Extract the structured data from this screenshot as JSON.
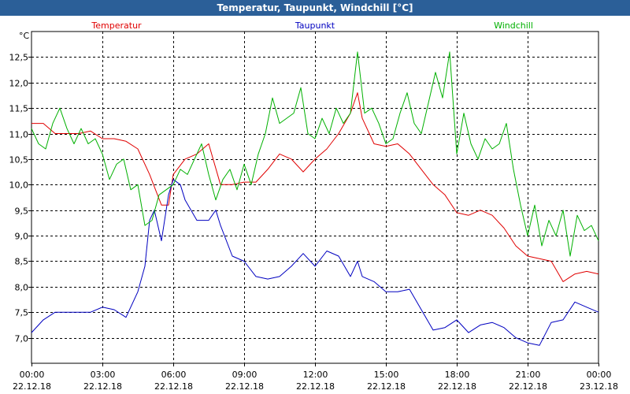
{
  "window": {
    "title": "Temperatur, Taupunkt, Windchill [°C]"
  },
  "colors": {
    "title_bar": "#2b5f98",
    "grid": "#000000",
    "temperatur": "#e00000",
    "taupunkt": "#0000c0",
    "windchill": "#00b000"
  },
  "chart_data": {
    "type": "line",
    "title": "Temperatur, Taupunkt, Windchill [°C]",
    "ylabel": "°C",
    "xlabel": "",
    "ylim": [
      6.5,
      13.0
    ],
    "xlim": [
      0,
      24
    ],
    "y_ticks": [
      {
        "value": 7.0,
        "label": "7,0"
      },
      {
        "value": 7.5,
        "label": "7,5"
      },
      {
        "value": 8.0,
        "label": "8,0"
      },
      {
        "value": 8.5,
        "label": "8,5"
      },
      {
        "value": 9.0,
        "label": "9,0"
      },
      {
        "value": 9.5,
        "label": "9,5"
      },
      {
        "value": 10.0,
        "label": "10,0"
      },
      {
        "value": 10.5,
        "label": "10,5"
      },
      {
        "value": 11.0,
        "label": "11,0"
      },
      {
        "value": 11.5,
        "label": "11,5"
      },
      {
        "value": 12.0,
        "label": "12,0"
      },
      {
        "value": 12.5,
        "label": "12,5"
      }
    ],
    "x_ticks": [
      {
        "value": 0,
        "time": "00:00",
        "date": "22.12.18"
      },
      {
        "value": 3,
        "time": "03:00",
        "date": "22.12.18"
      },
      {
        "value": 6,
        "time": "06:00",
        "date": "22.12.18"
      },
      {
        "value": 9,
        "time": "09:00",
        "date": "22.12.18"
      },
      {
        "value": 12,
        "time": "12:00",
        "date": "22.12.18"
      },
      {
        "value": 15,
        "time": "15:00",
        "date": "22.12.18"
      },
      {
        "value": 18,
        "time": "18:00",
        "date": "22.12.18"
      },
      {
        "value": 21,
        "time": "21:00",
        "date": "22.12.18"
      },
      {
        "value": 24,
        "time": "00:00",
        "date": "23.12.18"
      }
    ],
    "grid": true,
    "legend_placement": "top",
    "series": [
      {
        "name": "Temperatur",
        "color": "#e00000",
        "x": [
          0,
          0.5,
          1,
          1.5,
          2,
          2.5,
          3,
          3.5,
          4,
          4.5,
          5,
          5.5,
          5.8,
          6,
          6.5,
          7,
          7.5,
          8,
          8.5,
          9,
          9.5,
          10,
          10.5,
          11,
          11.5,
          12,
          12.5,
          13,
          13.5,
          13.8,
          14,
          14.5,
          15,
          15.5,
          16,
          16.5,
          17,
          17.5,
          18,
          18.5,
          19,
          19.5,
          20,
          20.5,
          21,
          21.5,
          22,
          22.5,
          23,
          23.5,
          24
        ],
        "values": [
          11.2,
          11.2,
          11.0,
          11.0,
          11.0,
          11.05,
          10.9,
          10.9,
          10.85,
          10.7,
          10.2,
          9.6,
          9.6,
          10.2,
          10.5,
          10.6,
          10.8,
          10.0,
          10.0,
          10.05,
          10.05,
          10.3,
          10.6,
          10.5,
          10.25,
          10.5,
          10.7,
          11.0,
          11.4,
          11.8,
          11.3,
          10.8,
          10.75,
          10.8,
          10.6,
          10.3,
          10.0,
          9.8,
          9.45,
          9.4,
          9.5,
          9.4,
          9.15,
          8.8,
          8.6,
          8.55,
          8.5,
          8.1,
          8.25,
          8.3,
          8.25
        ]
      },
      {
        "name": "Taupunkt",
        "color": "#0000c0",
        "x": [
          0,
          0.5,
          1,
          1.5,
          2,
          2.5,
          3,
          3.5,
          4,
          4.5,
          4.8,
          5,
          5.2,
          5.5,
          5.8,
          6,
          6.3,
          6.5,
          7,
          7.5,
          7.8,
          8,
          8.5,
          9,
          9.5,
          10,
          10.5,
          11,
          11.5,
          12,
          12.5,
          13,
          13.5,
          13.8,
          14,
          14.5,
          15,
          15.5,
          16,
          16.5,
          17,
          17.5,
          18,
          18.5,
          19,
          19.5,
          20,
          20.5,
          21,
          21.5,
          22,
          22.5,
          23,
          23.5,
          24
        ],
        "values": [
          7.1,
          7.35,
          7.5,
          7.5,
          7.5,
          7.5,
          7.6,
          7.55,
          7.4,
          7.9,
          8.4,
          9.3,
          9.5,
          8.9,
          9.8,
          10.1,
          10.0,
          9.7,
          9.3,
          9.3,
          9.5,
          9.2,
          8.6,
          8.5,
          8.2,
          8.15,
          8.2,
          8.4,
          8.65,
          8.4,
          8.7,
          8.6,
          8.2,
          8.5,
          8.2,
          8.1,
          7.9,
          7.9,
          7.95,
          7.55,
          7.15,
          7.2,
          7.35,
          7.1,
          7.25,
          7.3,
          7.2,
          7.0,
          6.9,
          6.85,
          7.3,
          7.35,
          7.7,
          7.6,
          7.5
        ]
      },
      {
        "name": "Windchill",
        "color": "#00b000",
        "x": [
          0,
          0.3,
          0.6,
          0.9,
          1.2,
          1.5,
          1.8,
          2.1,
          2.4,
          2.7,
          3.0,
          3.3,
          3.6,
          3.9,
          4.2,
          4.5,
          4.8,
          5.1,
          5.4,
          5.7,
          6.0,
          6.3,
          6.6,
          6.9,
          7.2,
          7.5,
          7.8,
          8.1,
          8.4,
          8.7,
          9.0,
          9.3,
          9.6,
          9.9,
          10.2,
          10.5,
          10.8,
          11.1,
          11.4,
          11.7,
          12.0,
          12.3,
          12.6,
          12.9,
          13.2,
          13.5,
          13.8,
          14.1,
          14.4,
          14.7,
          15.0,
          15.3,
          15.6,
          15.9,
          16.2,
          16.5,
          16.8,
          17.1,
          17.4,
          17.7,
          18.0,
          18.3,
          18.6,
          18.9,
          19.2,
          19.5,
          19.8,
          20.1,
          20.4,
          20.7,
          21.0,
          21.3,
          21.6,
          21.9,
          22.2,
          22.5,
          22.8,
          23.1,
          23.4,
          23.7,
          24.0
        ],
        "values": [
          11.1,
          10.8,
          10.7,
          11.2,
          11.5,
          11.1,
          10.8,
          11.1,
          10.8,
          10.9,
          10.6,
          10.1,
          10.4,
          10.5,
          9.9,
          10.0,
          9.2,
          9.3,
          9.8,
          9.9,
          10.0,
          10.3,
          10.2,
          10.5,
          10.8,
          10.2,
          9.7,
          10.1,
          10.3,
          9.9,
          10.4,
          10.0,
          10.6,
          11.0,
          11.7,
          11.2,
          11.3,
          11.4,
          11.9,
          11.0,
          10.9,
          11.3,
          11.0,
          11.5,
          11.2,
          11.4,
          12.6,
          11.4,
          11.5,
          11.2,
          10.8,
          10.9,
          11.4,
          11.8,
          11.2,
          11.0,
          11.6,
          12.2,
          11.7,
          12.6,
          10.6,
          11.4,
          10.8,
          10.5,
          10.9,
          10.7,
          10.8,
          11.2,
          10.3,
          9.6,
          9.0,
          9.6,
          8.8,
          9.3,
          9.0,
          9.5,
          8.6,
          9.4,
          9.1,
          9.2,
          8.9
        ]
      }
    ]
  }
}
